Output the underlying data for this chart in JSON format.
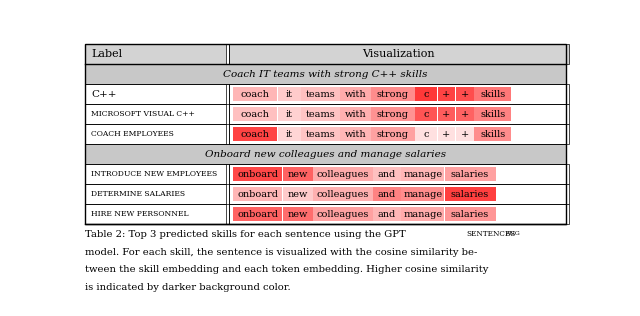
{
  "figsize": [
    6.4,
    3.16
  ],
  "dpi": 100,
  "section1_title": "Coach IT teams with strong C++ skills",
  "section2_title": "Onboard new colleagues and manage salaries",
  "rows": [
    {
      "label": "C++",
      "label_style": "normal",
      "tokens": [
        "coach",
        "it",
        "teams",
        "with",
        "strong",
        "c",
        "+",
        "+",
        "skills"
      ],
      "intensities": [
        0.35,
        0.25,
        0.3,
        0.4,
        0.55,
        0.95,
        0.9,
        0.85,
        0.65
      ]
    },
    {
      "label": "Microsoft Visual C++",
      "label_style": "smallcaps",
      "tokens": [
        "coach",
        "it",
        "teams",
        "with",
        "strong",
        "c",
        "+",
        "+",
        "skills"
      ],
      "intensities": [
        0.3,
        0.22,
        0.28,
        0.38,
        0.52,
        0.82,
        0.78,
        0.75,
        0.6
      ]
    },
    {
      "label": "Coach Employees",
      "label_style": "smallcaps",
      "tokens": [
        "coach",
        "it",
        "teams",
        "with",
        "strong",
        "c",
        "+",
        "+",
        "skills"
      ],
      "intensities": [
        0.9,
        0.2,
        0.28,
        0.35,
        0.45,
        0.15,
        0.15,
        0.15,
        0.55
      ]
    },
    {
      "label": "Introduce New Employees",
      "label_style": "smallcaps",
      "tokens": [
        "onboard",
        "new",
        "colleagues",
        "and",
        "manage",
        "salaries"
      ],
      "intensities": [
        0.88,
        0.75,
        0.4,
        0.3,
        0.35,
        0.45
      ]
    },
    {
      "label": "Determine Salaries",
      "label_style": "smallcaps",
      "tokens": [
        "onboard",
        "new",
        "colleagues",
        "and",
        "manage",
        "salaries"
      ],
      "intensities": [
        0.35,
        0.25,
        0.38,
        0.6,
        0.55,
        0.92
      ]
    },
    {
      "label": "Hire New Personnel",
      "label_style": "smallcaps",
      "tokens": [
        "onboard",
        "new",
        "colleagues",
        "and",
        "manage",
        "salaries"
      ],
      "intensities": [
        0.75,
        0.7,
        0.45,
        0.35,
        0.4,
        0.5
      ]
    }
  ],
  "caption_parts": [
    "Table 2: Top 3 predicted skills for each sentence using the GPT ",
    "SENTENCES",
    "AUG",
    "model. For each skill, the sentence is visualized with the cosine similarity be-",
    "tween the skill embedding and each token embedding. Higher cosine similarity",
    "is indicated by darker background color."
  ],
  "bg_color": "#ffffff",
  "header_bg": "#d3d3d3",
  "section_bg": "#c8c8c8",
  "row_bg": "#ffffff"
}
